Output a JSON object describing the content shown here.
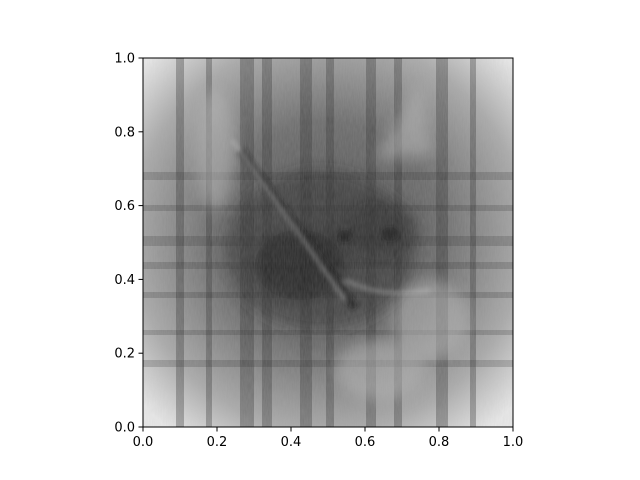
{
  "chart_data": {
    "type": "heatmap",
    "title": "",
    "xlabel": "",
    "ylabel": "",
    "xlim": [
      0.0,
      1.0
    ],
    "ylim": [
      0.0,
      1.0
    ],
    "grid": false,
    "colormap": "gray",
    "image_description_visible": "grayscale reconstructed image",
    "x_ticks": [
      0.0,
      0.2,
      0.4,
      0.6,
      0.8,
      1.0
    ],
    "x_tick_labels": [
      "0.0",
      "0.2",
      "0.4",
      "0.6",
      "0.8",
      "1.0"
    ],
    "y_ticks": [
      0.0,
      0.2,
      0.4,
      0.6,
      0.8,
      1.0
    ],
    "y_tick_labels": [
      "0.0",
      "0.2",
      "0.4",
      "0.6",
      "0.8",
      "1.0"
    ]
  }
}
